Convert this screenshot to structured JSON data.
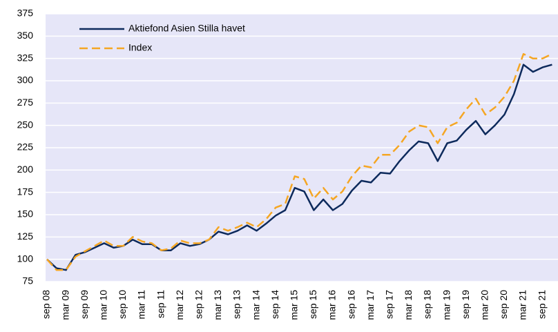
{
  "chart_data": {
    "type": "line",
    "categories": [
      "sep 08",
      null,
      "mar 09",
      null,
      "sep 09",
      null,
      "mar 10",
      null,
      "sep 10",
      null,
      "mar 11",
      null,
      "sep 11",
      null,
      "mar 12",
      null,
      "sep 12",
      null,
      "mar 13",
      null,
      "sep 13",
      null,
      "mar 14",
      null,
      "sep 14",
      null,
      "mar 15",
      null,
      "sep 15",
      null,
      "mar 16",
      null,
      "sep 16",
      null,
      "mar 17",
      null,
      "sep 17",
      null,
      "mar 18",
      null,
      "sep 18",
      null,
      "mar 19",
      null,
      "sep 19",
      null,
      "mar 20",
      null,
      "sep 20",
      null,
      "mar 21",
      null,
      "sep 21",
      null
    ],
    "series": [
      {
        "name": "Aktiefond Asien Stilla havet",
        "color": "#0d2a5c",
        "dash": false,
        "values": [
          100,
          90,
          88,
          105,
          108,
          113,
          118,
          113,
          115,
          122,
          117,
          117,
          110,
          110,
          118,
          115,
          117,
          122,
          131,
          128,
          132,
          138,
          132,
          140,
          149,
          155,
          180,
          176,
          155,
          167,
          155,
          162,
          177,
          188,
          186,
          197,
          196,
          210,
          222,
          232,
          230,
          210,
          230,
          233,
          245,
          255,
          240,
          250,
          262,
          285,
          318,
          310,
          315,
          318
        ]
      },
      {
        "name": "Index",
        "color": "#f5a623",
        "dash": true,
        "values": [
          100,
          88,
          88,
          103,
          109,
          115,
          121,
          115,
          115,
          125,
          120,
          118,
          110,
          112,
          121,
          118,
          118,
          122,
          136,
          132,
          136,
          141,
          136,
          145,
          158,
          162,
          193,
          190,
          168,
          180,
          167,
          176,
          193,
          205,
          203,
          217,
          217,
          228,
          243,
          250,
          248,
          230,
          248,
          253,
          268,
          280,
          262,
          270,
          282,
          300,
          330,
          325,
          325,
          330
        ]
      }
    ],
    "ylim": [
      75,
      375
    ],
    "yticks": [
      75,
      100,
      125,
      150,
      175,
      200,
      225,
      250,
      275,
      300,
      325,
      350,
      375
    ],
    "grid": true
  }
}
